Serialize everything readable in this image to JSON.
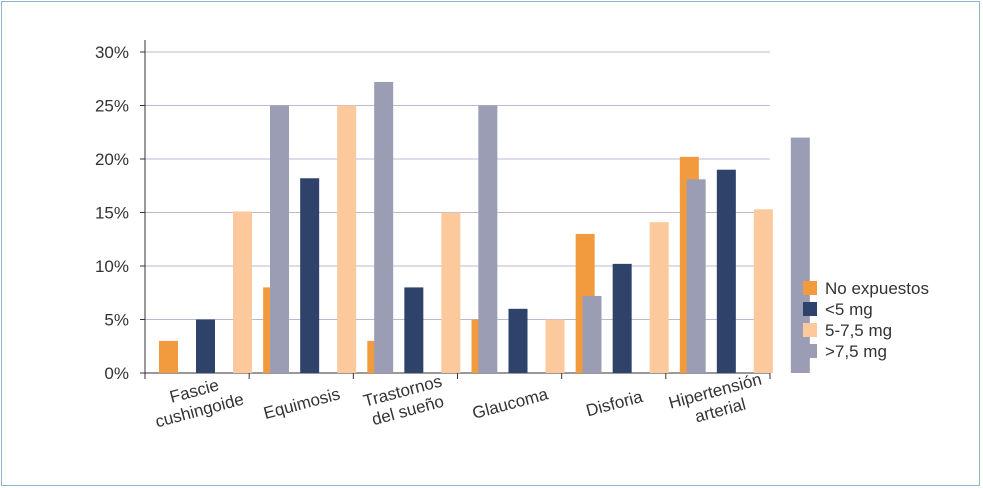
{
  "chart_data": {
    "type": "bar",
    "categories": [
      [
        "Fascie",
        "cushingoide"
      ],
      [
        "Equimosis"
      ],
      [
        "Trastornos",
        "del sueño"
      ],
      [
        "Glaucoma"
      ],
      [
        "Disforia"
      ],
      [
        "Hipertensión",
        "arterial"
      ]
    ],
    "series": [
      {
        "name": "No expuestos",
        "color": "#f29a3e",
        "values": [
          3,
          8,
          3,
          5,
          13,
          20.2
        ]
      },
      {
        "name": "<5 mg",
        "color": "#2e426a",
        "values": [
          5,
          18.2,
          8,
          6,
          10.2,
          19
        ]
      },
      {
        "name": "5-7,5 mg",
        "color": "#fbc99c",
        "values": [
          15.1,
          25,
          15,
          5,
          14.1,
          15.3
        ]
      },
      {
        "name": ">7,5 mg",
        "color": "#9b9db5",
        "values": [
          25,
          27.2,
          25,
          7.2,
          18.1,
          22
        ]
      }
    ],
    "yticks": [
      "0%",
      "5%",
      "10%",
      "15%",
      "20%",
      "25%",
      "30%"
    ],
    "ylim": [
      0,
      30
    ],
    "ytick_step": 5,
    "grid": true,
    "legend_position": "right",
    "title": "",
    "xlabel": "",
    "ylabel": ""
  },
  "colors": {
    "frame": "#8fb3c7",
    "grid": "#b8b8d8",
    "axis": "#333333"
  }
}
